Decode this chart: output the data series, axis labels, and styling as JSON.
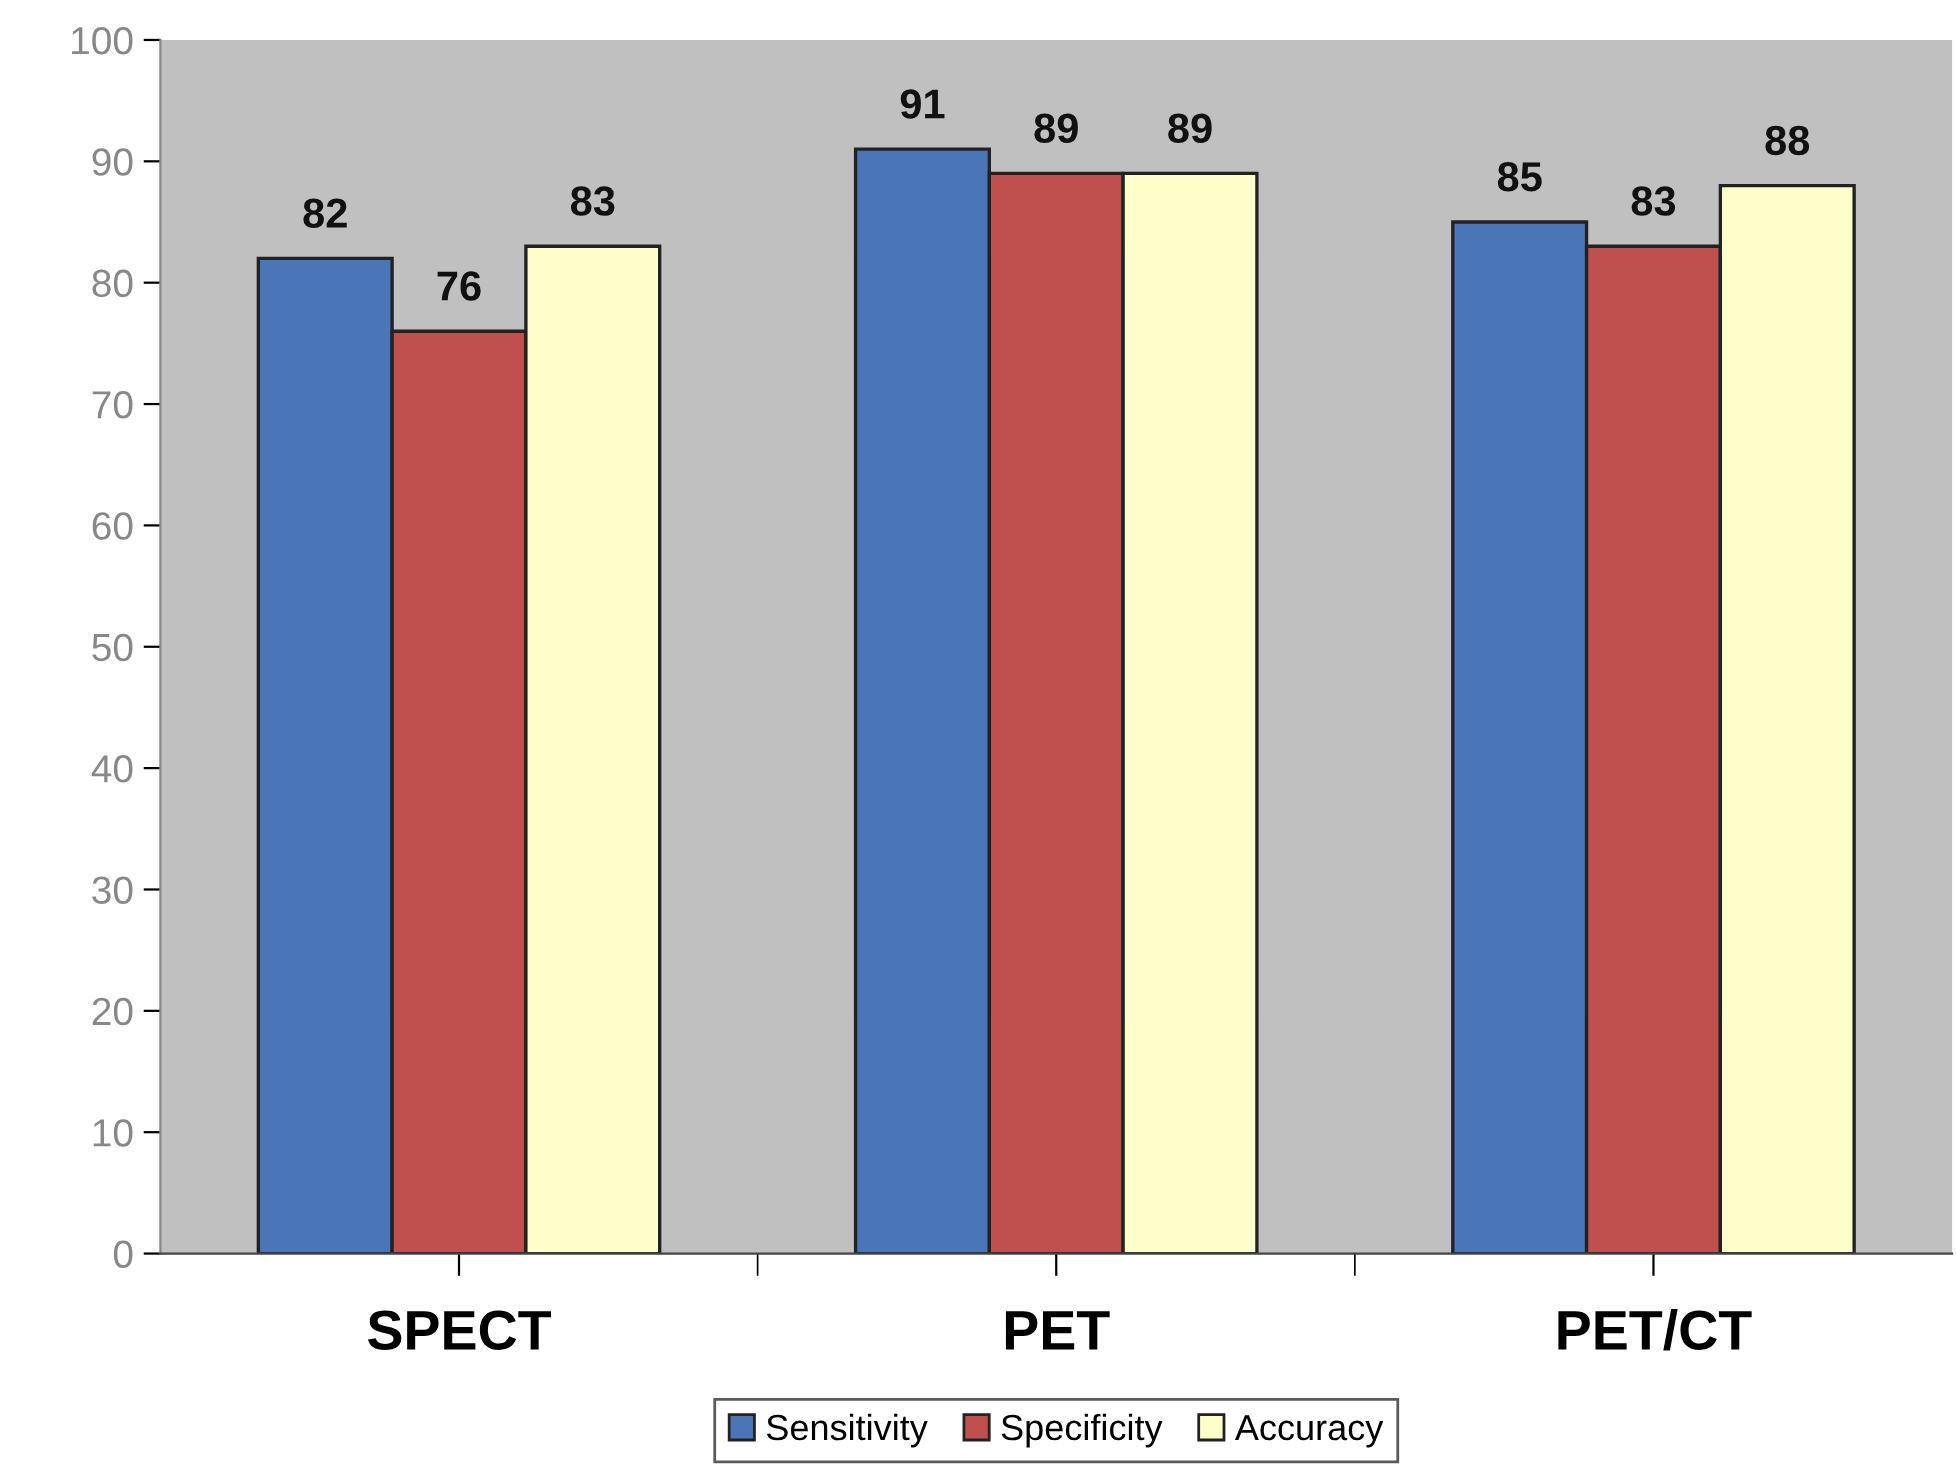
{
  "chart_data": {
    "type": "bar",
    "categories": [
      "SPECT",
      "PET",
      "PET/CT"
    ],
    "series": [
      {
        "name": "Sensitivity",
        "color": "#4a76b8",
        "values": [
          82,
          91,
          85
        ]
      },
      {
        "name": "Specificity",
        "color": "#c0504d",
        "values": [
          76,
          89,
          83
        ]
      },
      {
        "name": "Accuracy",
        "color": "#ffffcc",
        "values": [
          83,
          89,
          88
        ]
      }
    ],
    "ylim": [
      0,
      100
    ],
    "yticks": [
      0,
      10,
      20,
      30,
      40,
      50,
      60,
      70,
      80,
      90,
      100
    ],
    "grid": false,
    "legend": "bottom",
    "data_labels": true
  }
}
